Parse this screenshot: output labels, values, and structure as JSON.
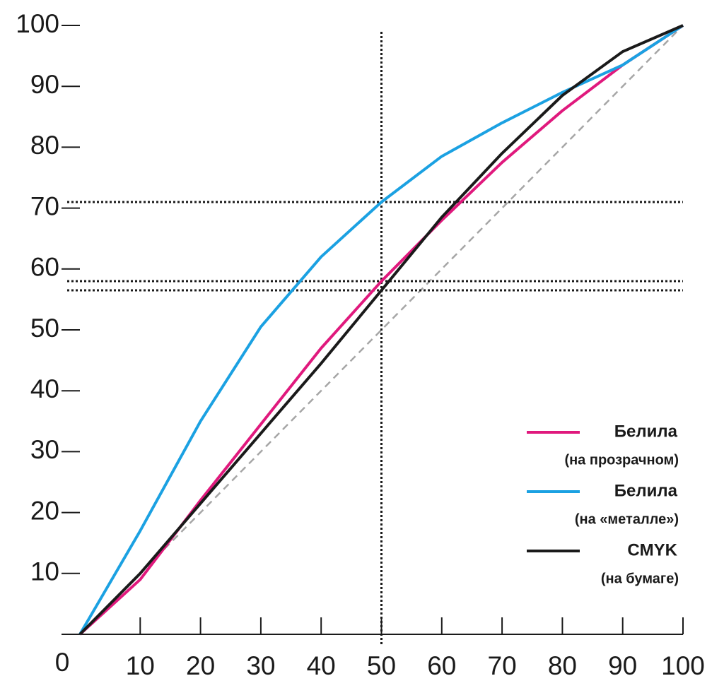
{
  "chart_data": {
    "type": "line",
    "x": [
      0,
      10,
      20,
      30,
      40,
      50,
      60,
      70,
      80,
      90,
      100
    ],
    "series": [
      {
        "name": "Белила",
        "note": "(на прозрачном)",
        "color": "#e0197d",
        "values": [
          0,
          9,
          22,
          34.5,
          47,
          58,
          68,
          77.5,
          86,
          93.5,
          100
        ]
      },
      {
        "name": "Белила",
        "note": "(на «металле»)",
        "color": "#1ba1e2",
        "values": [
          0,
          17,
          35,
          50.5,
          62,
          71,
          78.5,
          84,
          89,
          93.5,
          100
        ]
      },
      {
        "name": "CMYK",
        "note": "(на бумаге)",
        "color": "#1a1a1a",
        "values": [
          0,
          10,
          21.5,
          33,
          44.5,
          56.5,
          68.5,
          79,
          88.5,
          95.7,
          100
        ]
      }
    ],
    "xlim": [
      0,
      100
    ],
    "ylim": [
      0,
      100
    ],
    "xticks": [
      10,
      20,
      30,
      40,
      50,
      60,
      70,
      80,
      90,
      100
    ],
    "yticks": [
      0,
      10,
      20,
      30,
      40,
      50,
      60,
      70,
      80,
      90,
      100
    ],
    "reference_lines": {
      "x": [
        50
      ],
      "y": [
        71,
        58,
        56.5
      ]
    },
    "diagonal": true,
    "legend": "lower right"
  }
}
